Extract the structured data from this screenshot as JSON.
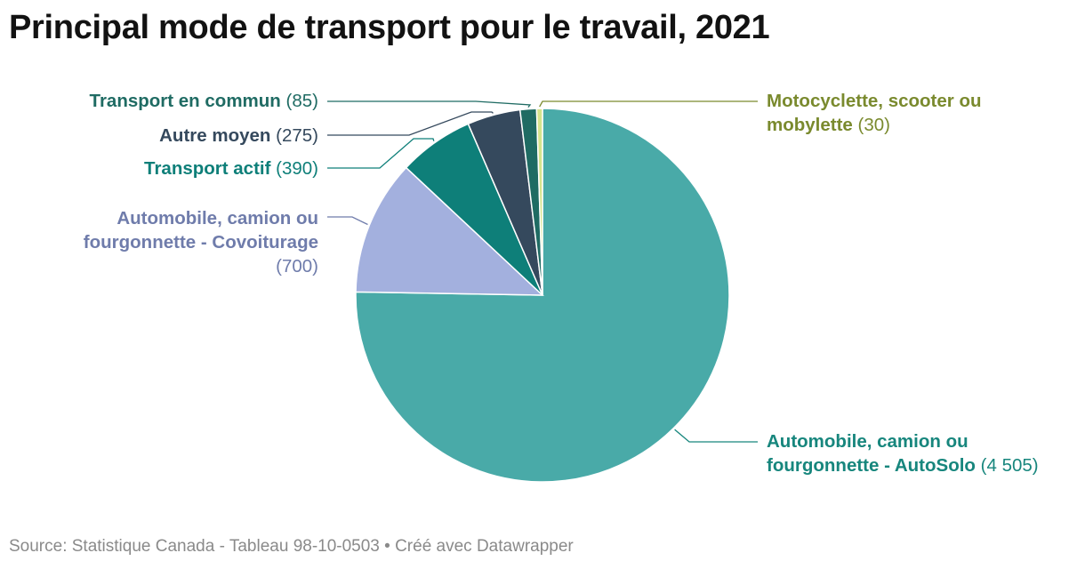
{
  "title": "Principal mode de transport pour le travail, 2021",
  "source_text": "Source: Statistique Canada - Tableau 98-10-0503 • Créé avec Datawrapper",
  "chart_data": {
    "type": "pie",
    "title": "Principal mode de transport pour le travail, 2021",
    "slices": [
      {
        "key": "autosolo",
        "label": "Automobile, camion ou fourgonnette - AutoSolo",
        "label_line1": "Automobile, camion ou",
        "label_line2": "fourgonnette - AutoSolo",
        "value": 4505,
        "value_text": "(4 505)",
        "color": "#49aaa8",
        "text_color": "#17867d"
      },
      {
        "key": "covoiturage",
        "label": "Automobile, camion ou fourgonnette - Covoiturage",
        "label_line1": "Automobile, camion ou",
        "label_line2": "fourgonnette - Covoiturage",
        "value": 700,
        "value_text": "(700)",
        "color": "#a3b0de",
        "text_color": "#6f7cab"
      },
      {
        "key": "actif",
        "label": "Transport actif",
        "value": 390,
        "value_text": "(390)",
        "color": "#0e7f79",
        "text_color": "#0e7f79"
      },
      {
        "key": "autre",
        "label": "Autre moyen",
        "value": 275,
        "value_text": "(275)",
        "color": "#35495d",
        "text_color": "#35495d"
      },
      {
        "key": "commun",
        "label": "Transport en commun",
        "value": 85,
        "value_text": "(85)",
        "color": "#1f6b63",
        "text_color": "#1f6b63"
      },
      {
        "key": "moto",
        "label": "Motocyclette, scooter ou mobylette",
        "label_line1": "Motocyclette, scooter ou",
        "label_line2": "mobylette",
        "value": 30,
        "value_text": "(30)",
        "color": "#d6e38c",
        "text_color": "#7a8a2e"
      }
    ]
  }
}
